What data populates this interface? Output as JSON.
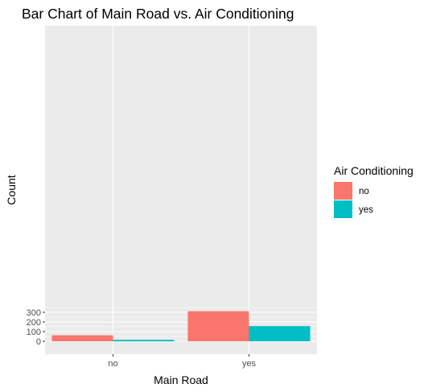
{
  "chart_data": {
    "type": "bar",
    "title": "Bar Chart of Main Road vs. Air Conditioning",
    "xlabel": "Main Road",
    "ylabel": "Count",
    "categories": [
      "no",
      "yes"
    ],
    "series": [
      {
        "name": "no",
        "values": [
          62,
          311
        ],
        "color": "#F8766D"
      },
      {
        "name": "yes",
        "values": [
          15,
          157
        ],
        "color": "#00BFC4"
      }
    ],
    "ylim": [
      0,
      327
    ],
    "yticks": [
      0,
      100,
      200,
      300
    ],
    "ytick_labels": [
      "0",
      "100",
      "200",
      "300"
    ],
    "grid": true,
    "legend": {
      "title": "Air Conditioning",
      "placement": "right",
      "entries": [
        "no",
        "yes"
      ]
    },
    "panel_background": "#EBEBEB",
    "grid_color": "#FFFFFF"
  }
}
